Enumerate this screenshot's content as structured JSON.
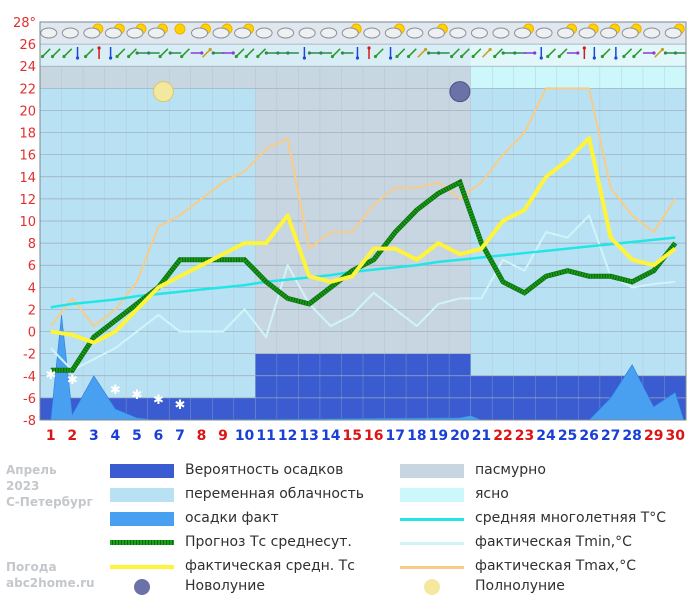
{
  "side_text": {
    "month": "Апрель",
    "year": "2023",
    "city": "С-Петербург",
    "site_title": "Погода",
    "site_url": "abc2home.ru"
  },
  "colors": {
    "plot_bg": "#c8d6e2",
    "precip_prob": "#3a5cd0",
    "overcast": "#c8d6e2",
    "partly": "#b8e2f4",
    "clear": "#ccf8fc",
    "precip_fact": "#4aa0f0",
    "forecast": "#1aa01a",
    "actual_avg": "#fff43a",
    "normal": "#22e6e6",
    "tmin": "#d0f4f8",
    "tmax": "#f8cc88",
    "weekday_label": "#1a3fd6",
    "weekend_label": "#dc1414"
  },
  "legend": [
    {
      "key": "precip_prob",
      "label": "Вероятность осадков",
      "kind": "fill"
    },
    {
      "key": "overcast",
      "label": "пасмурно",
      "kind": "fill"
    },
    {
      "key": "partly",
      "label": "переменная облачность",
      "kind": "fill"
    },
    {
      "key": "clear",
      "label": "ясно",
      "kind": "fill"
    },
    {
      "key": "precip_fact",
      "label": "осадки факт",
      "kind": "fill"
    },
    {
      "key": "normal",
      "label": "средняя многолетняя T°C",
      "kind": "line"
    },
    {
      "key": "forecast",
      "label": "Прогноз Тс среднесут.",
      "kind": "dotted"
    },
    {
      "key": "tmin",
      "label": "фактическая Tmin,°C",
      "kind": "line"
    },
    {
      "key": "actual_avg",
      "label": "фактическая средн. Тс",
      "kind": "thick"
    },
    {
      "key": "tmax",
      "label": "фактическая Tmax,°C",
      "kind": "line"
    },
    {
      "key": "new_moon",
      "label": "Новолуние",
      "kind": "newmoon"
    },
    {
      "key": "full_moon",
      "label": "Полнолуние",
      "kind": "fullmoon"
    }
  ],
  "chart_data": {
    "type": "line",
    "x": [
      1,
      2,
      3,
      4,
      5,
      6,
      7,
      8,
      9,
      10,
      11,
      12,
      13,
      14,
      15,
      16,
      17,
      18,
      19,
      20,
      21,
      22,
      23,
      24,
      25,
      26,
      27,
      28,
      29,
      30
    ],
    "weekends": [
      1,
      2,
      8,
      9,
      15,
      16,
      22,
      23,
      29,
      30
    ],
    "ylim": [
      -8,
      28
    ],
    "y_ticks": [
      -8,
      -6,
      -4,
      -2,
      0,
      2,
      4,
      6,
      8,
      10,
      12,
      14,
      16,
      18,
      20,
      22,
      24,
      26,
      28
    ],
    "y_tick_labels": [
      "-8",
      "-6",
      "-4",
      "-2",
      "0",
      "2",
      "4",
      "6",
      "8",
      "10",
      "12",
      "14",
      "16",
      "18",
      "20",
      "22",
      "24",
      "26",
      "28°"
    ],
    "grid": true,
    "sky_bands": [
      {
        "from": 1,
        "to": 11,
        "state": "partly"
      },
      {
        "from": 11,
        "to": 21,
        "state": "overcast"
      },
      {
        "from": 21,
        "to": 31,
        "state": "partly"
      }
    ],
    "top_bands": [
      {
        "from": 1,
        "to": 21,
        "state": "partly",
        "ymin": 24
      },
      {
        "from": 21,
        "to": 31,
        "state": "clear",
        "ymin": 22
      }
    ],
    "precip_probability_bands": [
      {
        "from": 1,
        "to": 11,
        "ytop": -6
      },
      {
        "from": 11,
        "to": 21,
        "ytop": -2
      },
      {
        "from": 21,
        "to": 31,
        "ytop": -4
      }
    ],
    "series": [
      {
        "key": "tmax",
        "values": [
          0.5,
          3,
          0.5,
          2,
          4.5,
          9.5,
          10.5,
          12,
          13.5,
          14.5,
          16.5,
          17.5,
          7.5,
          9,
          9,
          11.5,
          13,
          13,
          13.5,
          12,
          13.5,
          16,
          18,
          22,
          22,
          22,
          13,
          10.5,
          9,
          12
        ]
      },
      {
        "key": "tmin",
        "values": [
          -1.5,
          -3.5,
          -2.5,
          -1.5,
          0,
          1.5,
          0,
          0,
          0,
          2,
          -0.5,
          6,
          2.5,
          0.5,
          1.5,
          3.5,
          2,
          0.5,
          2.5,
          3,
          3,
          6.5,
          5.5,
          9,
          8.5,
          10.5,
          5,
          4,
          4.3,
          4.5
        ]
      },
      {
        "key": "normal",
        "values": [
          2.2,
          2.5,
          2.7,
          2.9,
          3.2,
          3.4,
          3.6,
          3.8,
          4.0,
          4.2,
          4.5,
          4.7,
          4.9,
          5.1,
          5.4,
          5.6,
          5.8,
          6.0,
          6.3,
          6.5,
          6.7,
          6.9,
          7.1,
          7.3,
          7.5,
          7.7,
          7.9,
          8.1,
          8.3,
          8.5
        ]
      },
      {
        "key": "forecast",
        "values": [
          -3.5,
          -3.5,
          -0.5,
          1,
          2.5,
          4,
          6.5,
          6.5,
          6.5,
          6.5,
          4.5,
          3,
          2.5,
          4,
          5.5,
          6.5,
          9,
          11,
          12.5,
          13.5,
          8,
          4.5,
          3.5,
          5,
          5.5,
          5,
          5,
          4.5,
          5.5,
          8
        ]
      },
      {
        "key": "actual_avg",
        "values": [
          0,
          -0.3,
          -1,
          0,
          2,
          4,
          5,
          6,
          7,
          8,
          8,
          10.5,
          5,
          4.5,
          5,
          7.5,
          7.5,
          6.5,
          8,
          7,
          7.5,
          10,
          11,
          14,
          15.5,
          17.5,
          8.5,
          6.5,
          6,
          7.5
        ]
      }
    ],
    "precip_fact_points": [
      [
        1,
        -8
      ],
      [
        1.5,
        1.5
      ],
      [
        2,
        -7.5
      ],
      [
        3,
        -4
      ],
      [
        4,
        -7
      ],
      [
        5,
        -7.8
      ],
      [
        6,
        -8
      ],
      [
        20,
        -7.8
      ],
      [
        20.5,
        -7.6
      ],
      [
        21,
        -8
      ],
      [
        26,
        -8
      ],
      [
        27,
        -6
      ],
      [
        28,
        -3
      ],
      [
        29,
        -6.8
      ],
      [
        30,
        -5.5
      ],
      [
        30.4,
        -8
      ]
    ],
    "snow_days": [
      1,
      2,
      4,
      5,
      6,
      7
    ],
    "new_moon_day": 20,
    "full_moon_day": 6,
    "sky_icons": [
      "cloudy",
      "cloudy",
      "partly",
      "partly",
      "partly",
      "partly",
      "sunny",
      "partly",
      "partly",
      "partly",
      "cloudy",
      "cloudy",
      "cloudy",
      "cloudy",
      "partly",
      "cloudy",
      "partly",
      "cloudy",
      "partly",
      "cloudy",
      "cloudy",
      "cloudy",
      "partly",
      "cloudy",
      "partly",
      "partly",
      "partly",
      "partly",
      "cloudy",
      "partly"
    ],
    "wind_icons": [
      [
        "sw",
        "sw"
      ],
      [
        "sw",
        "s"
      ],
      [
        "sw",
        "n"
      ],
      [
        "s",
        "sw"
      ],
      [
        "sw",
        "w"
      ],
      [
        "w",
        "sw"
      ],
      [
        "w",
        "sw"
      ],
      [
        "e",
        "ne"
      ],
      [
        "w",
        "e"
      ],
      [
        "sw",
        "sw"
      ],
      [
        "sw",
        "w"
      ],
      [
        "w",
        "w"
      ],
      [
        "s",
        "w"
      ],
      [
        "w",
        "sw"
      ],
      [
        "w",
        "s"
      ],
      [
        "n",
        "sw"
      ],
      [
        "s",
        "sw"
      ],
      [
        "sw",
        "ne"
      ],
      [
        "w",
        "w"
      ],
      [
        "sw",
        "sw"
      ],
      [
        "sw",
        "ne"
      ],
      [
        "sw",
        "w"
      ],
      [
        "w",
        "e"
      ],
      [
        "s",
        "sw"
      ],
      [
        "sw",
        "e"
      ],
      [
        "n",
        "s"
      ],
      [
        "sw",
        "s"
      ],
      [
        "sw",
        "sw"
      ],
      [
        "e",
        "ne"
      ],
      [
        "w",
        "w"
      ]
    ]
  }
}
